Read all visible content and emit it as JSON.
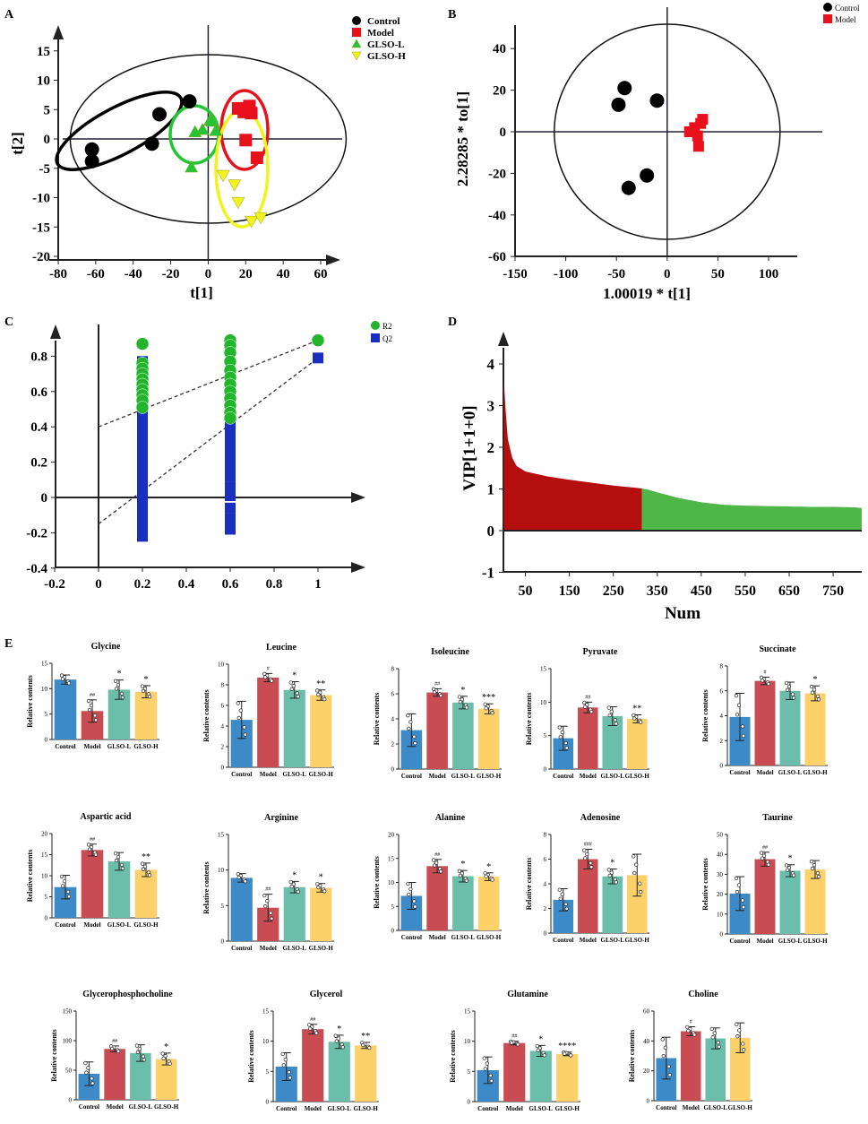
{
  "panel_labels": [
    "A",
    "B",
    "C",
    "D",
    "E"
  ],
  "colors": {
    "control": "#000000",
    "model": "#e8101a",
    "glso_l": "#21c632",
    "glso_h": "#f2f21c",
    "r2": "#22b42b",
    "q2": "#1a2fbf",
    "vip_high": "#b50e0e",
    "vip_low": "#4fb648",
    "bar_control": "#3c8ac7",
    "bar_model": "#c94c52",
    "bar_glso_l": "#6bbfaa",
    "bar_glso_h": "#fdd16a"
  },
  "chart_data": [
    {
      "panel": "A",
      "type": "scatter",
      "xlabel": "t[1]",
      "ylabel": "t[2]",
      "xlim": [
        -80,
        70
      ],
      "ylim": [
        -20,
        18
      ],
      "xticks": [
        -80,
        -60,
        -40,
        -20,
        0,
        20,
        40,
        60
      ],
      "yticks": [
        -20,
        -15,
        -10,
        -5,
        0,
        5,
        10,
        15
      ],
      "legend": [
        "Control",
        "Model",
        "GLSO-L",
        "GLSO-H"
      ],
      "legend_position": "top-right",
      "series": [
        {
          "name": "Control",
          "marker": "circle",
          "x": [
            -62,
            -62,
            -30,
            -26,
            -10
          ],
          "y": [
            -1.8,
            -3.8,
            -0.8,
            4.2,
            6.4
          ]
        },
        {
          "name": "Model",
          "marker": "square",
          "x": [
            16,
            19,
            22,
            23,
            26,
            20
          ],
          "y": [
            5.2,
            4.6,
            5.6,
            4.4,
            -3.2,
            -0.2
          ]
        },
        {
          "name": "GLSO-L",
          "marker": "triangle",
          "x": [
            -9,
            -7,
            -3,
            1,
            2,
            4
          ],
          "y": [
            -4.8,
            1.2,
            1.6,
            3.2,
            3.0,
            1.4
          ]
        },
        {
          "name": "GLSO-H",
          "marker": "triangle-down",
          "x": [
            8,
            14,
            16,
            23,
            28
          ],
          "y": [
            -6.2,
            -7.8,
            -10.8,
            -14.0,
            -13.4
          ]
        }
      ]
    },
    {
      "panel": "B",
      "type": "scatter",
      "xlabel": "1.00019 * t[1]",
      "ylabel": "2.28285 * to[1]",
      "xlim": [
        -150,
        150
      ],
      "ylim": [
        -60,
        50
      ],
      "xticks": [
        -150,
        -100,
        -50,
        0,
        50,
        100
      ],
      "yticks": [
        -60,
        -40,
        -20,
        0,
        20,
        40
      ],
      "legend": [
        "Control",
        "Model"
      ],
      "legend_position": "top-right",
      "series": [
        {
          "name": "Control",
          "marker": "circle",
          "x": [
            -48,
            -42,
            -38,
            -20,
            -10
          ],
          "y": [
            13,
            21,
            -27,
            -21,
            15
          ]
        },
        {
          "name": "Model",
          "marker": "square",
          "x": [
            22,
            27,
            30,
            33,
            35,
            31
          ],
          "y": [
            0,
            2,
            -2,
            4,
            6,
            -7
          ]
        }
      ]
    },
    {
      "panel": "C",
      "type": "scatter",
      "xlabel": "",
      "ylabel": "",
      "xlim": [
        -0.2,
        1.05
      ],
      "ylim": [
        -0.4,
        0.95
      ],
      "xticks": [
        -0.2,
        0,
        0.2,
        0.4,
        0.6,
        0.8,
        1
      ],
      "yticks": [
        -0.4,
        -0.2,
        0,
        0.2,
        0.4,
        0.6,
        0.8
      ],
      "legend": [
        "R2",
        "Q2"
      ],
      "legend_position": "top-right",
      "series": [
        {
          "name": "R2",
          "marker": "circle",
          "x": [
            0.2,
            0.2,
            0.2,
            0.2,
            0.2,
            0.2,
            0.2,
            0.2,
            0.2,
            0.2,
            0.6,
            0.6,
            0.6,
            0.6,
            0.6,
            0.6,
            0.6,
            0.6,
            0.6,
            0.6,
            0.6,
            0.6,
            1.0
          ],
          "y": [
            0.87,
            0.76,
            0.73,
            0.7,
            0.67,
            0.64,
            0.61,
            0.58,
            0.55,
            0.51,
            0.89,
            0.86,
            0.82,
            0.77,
            0.72,
            0.68,
            0.64,
            0.6,
            0.56,
            0.52,
            0.48,
            0.45,
            0.89
          ]
        },
        {
          "name": "Q2",
          "marker": "square",
          "x": [
            0.2,
            0.2,
            0.2,
            0.2,
            0.2,
            0.2,
            0.2,
            0.2,
            0.2,
            0.2,
            0.2,
            0.2,
            0.2,
            0.2,
            0.2,
            0.2,
            0.2,
            0.2,
            0.2,
            0.2,
            0.2,
            0.2,
            0.2,
            0.2,
            0.2,
            0.2,
            0.2,
            0.6,
            0.6,
            0.6,
            0.6,
            0.6,
            0.6,
            0.6,
            0.6,
            0.6,
            0.6,
            0.6,
            0.6,
            0.6,
            0.6,
            0.6,
            0.6,
            0.6,
            0.6,
            0.6,
            1.0
          ],
          "y": [
            0.77,
            0.73,
            0.69,
            0.65,
            0.61,
            0.57,
            0.53,
            0.49,
            0.45,
            0.41,
            0.37,
            0.33,
            0.29,
            0.25,
            0.21,
            0.17,
            0.13,
            0.09,
            0.05,
            0.01,
            -0.03,
            -0.07,
            -0.11,
            -0.15,
            -0.19,
            -0.22,
            0.6,
            0.64,
            0.58,
            0.52,
            0.46,
            0.4,
            0.34,
            0.28,
            0.22,
            0.16,
            0.12,
            0.06,
            0.01,
            -0.06,
            -0.12,
            -0.18,
            0.4,
            0.3,
            0.2,
            0.26,
            0.79
          ]
        },
        {
          "name": "R2 fit",
          "line": [
            [
              0,
              0.4
            ],
            [
              1,
              0.89
            ]
          ]
        },
        {
          "name": "Q2 fit",
          "line": [
            [
              0,
              -0.15
            ],
            [
              1,
              0.79
            ]
          ]
        }
      ]
    },
    {
      "panel": "D",
      "type": "area",
      "xlabel": "Num",
      "ylabel": "VIP[1+1+0]",
      "xlim": [
        0,
        820
      ],
      "ylim": [
        -1,
        4.5
      ],
      "xticks": [
        50,
        150,
        250,
        350,
        450,
        550,
        650,
        750
      ],
      "yticks": [
        -1,
        0,
        1,
        2,
        3,
        4
      ],
      "split_at": 315,
      "x": [
        1,
        5,
        10,
        20,
        30,
        50,
        75,
        100,
        150,
        200,
        250,
        300,
        315,
        330,
        350,
        400,
        450,
        500,
        550,
        600,
        650,
        700,
        750,
        800,
        815
      ],
      "values": [
        3.6,
        2.9,
        2.2,
        1.75,
        1.55,
        1.42,
        1.36,
        1.3,
        1.22,
        1.15,
        1.08,
        1.03,
        1.01,
        0.98,
        0.92,
        0.78,
        0.68,
        0.62,
        0.6,
        0.59,
        0.58,
        0.57,
        0.57,
        0.56,
        0.54
      ]
    }
  ],
  "bar_panels": {
    "groups": [
      "Control",
      "Model",
      "GLSO-L",
      "GLSO-H"
    ],
    "ylabel": "Relative contents",
    "items": [
      {
        "title": "Glycine",
        "ymax": 15,
        "ticks": [
          0,
          5,
          10,
          15
        ],
        "values": [
          11.8,
          5.6,
          9.8,
          9.4
        ],
        "errs": [
          0.9,
          2.2,
          1.9,
          1.2
        ],
        "sig": [
          "",
          "##",
          "*",
          "*"
        ]
      },
      {
        "title": "Leucine",
        "ymax": 10,
        "ticks": [
          0,
          2,
          4,
          6,
          8,
          10
        ],
        "values": [
          4.6,
          8.7,
          7.5,
          7.0
        ],
        "errs": [
          1.8,
          0.4,
          0.8,
          0.5
        ],
        "sig": [
          "",
          "#",
          "*",
          "**"
        ]
      },
      {
        "title": "Isoleucine",
        "ymax": 8,
        "ticks": [
          0,
          2,
          4,
          6,
          8
        ],
        "values": [
          3.1,
          6.1,
          5.3,
          4.8
        ],
        "errs": [
          1.3,
          0.3,
          0.5,
          0.4
        ],
        "sig": [
          "",
          "##",
          "*",
          "***"
        ]
      },
      {
        "title": "Pyruvate",
        "ymax": 15,
        "ticks": [
          0,
          5,
          10,
          15
        ],
        "values": [
          4.6,
          9.2,
          7.9,
          7.5
        ],
        "errs": [
          1.8,
          0.8,
          1.4,
          0.6
        ],
        "sig": [
          "",
          "##",
          "",
          "**"
        ]
      },
      {
        "title": "Succinate",
        "ymax": 8,
        "ticks": [
          0,
          2,
          4,
          6,
          8
        ],
        "values": [
          3.9,
          6.8,
          6.0,
          5.8
        ],
        "errs": [
          1.9,
          0.3,
          0.7,
          0.6
        ],
        "sig": [
          "",
          "#",
          "",
          "*"
        ]
      },
      {
        "title": "Aspartic acid",
        "ymax": 20,
        "ticks": [
          0,
          5,
          10,
          15,
          20
        ],
        "values": [
          7.3,
          16.1,
          13.4,
          11.4
        ],
        "errs": [
          2.8,
          1.4,
          2.1,
          1.6
        ],
        "sig": [
          "",
          "##",
          "",
          "**"
        ]
      },
      {
        "title": "Arginine",
        "ymax": 15,
        "ticks": [
          0,
          5,
          10,
          15
        ],
        "values": [
          8.9,
          4.7,
          7.6,
          7.5
        ],
        "errs": [
          0.6,
          1.9,
          0.8,
          0.6
        ],
        "sig": [
          "",
          "##",
          "*",
          "*"
        ]
      },
      {
        "title": "Alanine",
        "ymax": 20,
        "ticks": [
          0,
          5,
          10,
          15,
          20
        ],
        "values": [
          7.2,
          13.4,
          11.3,
          11.2
        ],
        "errs": [
          2.8,
          1.4,
          1.2,
          0.8
        ],
        "sig": [
          "",
          "##",
          "*",
          "*"
        ]
      },
      {
        "title": "Adenosine",
        "ymax": 8,
        "ticks": [
          0,
          2,
          4,
          6,
          8
        ],
        "values": [
          2.7,
          6.0,
          4.6,
          4.7
        ],
        "errs": [
          0.9,
          0.8,
          0.6,
          1.7
        ],
        "sig": [
          "",
          "###",
          "*",
          ""
        ]
      },
      {
        "title": "Taurine",
        "ymax": 50,
        "ticks": [
          0,
          10,
          20,
          30,
          40,
          50
        ],
        "values": [
          20.3,
          37.6,
          31.8,
          32.4
        ],
        "errs": [
          8.5,
          3.5,
          3.0,
          4.5
        ],
        "sig": [
          "",
          "##",
          "*",
          ""
        ]
      },
      {
        "title": "Glycerophosphocholine",
        "ymax": 150,
        "ticks": [
          0,
          50,
          100,
          150
        ],
        "values": [
          44,
          86,
          79,
          69
        ],
        "errs": [
          20,
          5,
          14,
          10
        ],
        "sig": [
          "",
          "##",
          "",
          "*"
        ]
      },
      {
        "title": "Glycerol",
        "ymax": 15,
        "ticks": [
          0,
          5,
          10,
          15
        ],
        "values": [
          5.8,
          12.0,
          9.9,
          9.3
        ],
        "errs": [
          2.3,
          0.8,
          1.1,
          0.5
        ],
        "sig": [
          "",
          "##",
          "*",
          "**"
        ]
      },
      {
        "title": "Glutamine",
        "ymax": 15,
        "ticks": [
          0,
          5,
          10,
          15
        ],
        "values": [
          5.2,
          9.7,
          8.4,
          7.9
        ],
        "errs": [
          2.2,
          0.3,
          0.9,
          0.3
        ],
        "sig": [
          "",
          "##",
          "*",
          "****"
        ]
      },
      {
        "title": "Choline",
        "ymax": 60,
        "ticks": [
          0,
          20,
          40,
          60
        ],
        "values": [
          28.5,
          46.5,
          41.7,
          42.1
        ],
        "errs": [
          14,
          3,
          7,
          10
        ],
        "sig": [
          "",
          "#",
          "",
          ""
        ]
      }
    ]
  }
}
